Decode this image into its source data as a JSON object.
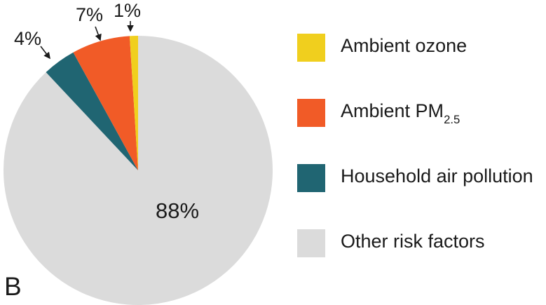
{
  "figure_label": "B",
  "chart_data": {
    "type": "pie",
    "title": "",
    "legend_position": "right",
    "slices": [
      {
        "name": "Ambient ozone",
        "value": 1,
        "pct_label": "1%",
        "color": "#F0CF1E"
      },
      {
        "name": "Ambient PM2.5",
        "value": 7,
        "pct_label": "7%",
        "color": "#F15B27"
      },
      {
        "name": "Household air pollution",
        "value": 4,
        "pct_label": "4%",
        "color": "#206572"
      },
      {
        "name": "Other risk factors",
        "value": 88,
        "pct_label": "88%",
        "color": "#DBDBDB"
      }
    ]
  },
  "legend": {
    "items": [
      {
        "label": "Ambient ozone",
        "sub": ""
      },
      {
        "label": "Ambient PM",
        "sub": "2.5"
      },
      {
        "label": "Household air pollution",
        "sub": ""
      },
      {
        "label": "Other risk factors",
        "sub": ""
      }
    ]
  }
}
